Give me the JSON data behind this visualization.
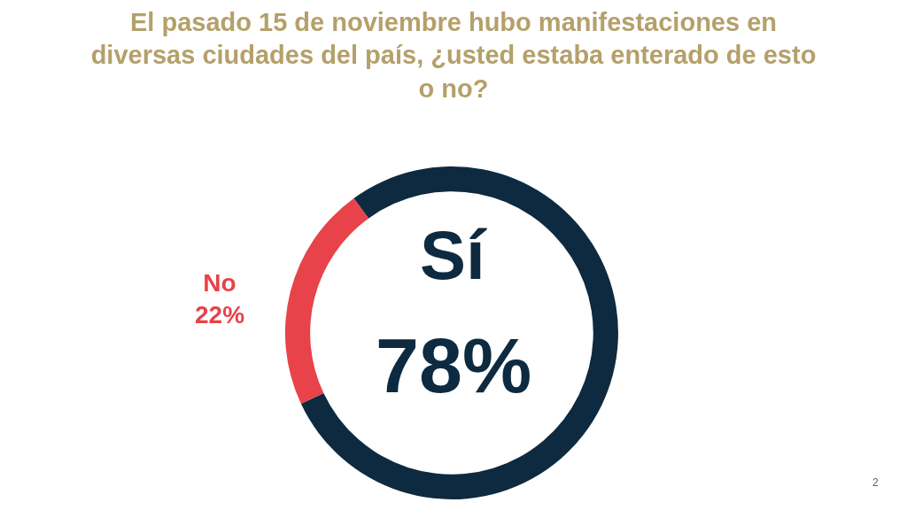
{
  "chart_data": {
    "type": "donut",
    "title": "El pasado 15 de noviembre hubo manifestaciones en\ndiversas ciudades del país, ¿usted estaba enterado de esto\no no?",
    "categories": [
      "Sí",
      "No"
    ],
    "values": [
      78,
      22
    ],
    "value_labels": [
      "78%",
      "22%"
    ],
    "colors": [
      "#0d2a40",
      "#e8424a"
    ],
    "legend": false,
    "annotations": [
      "2"
    ]
  }
}
